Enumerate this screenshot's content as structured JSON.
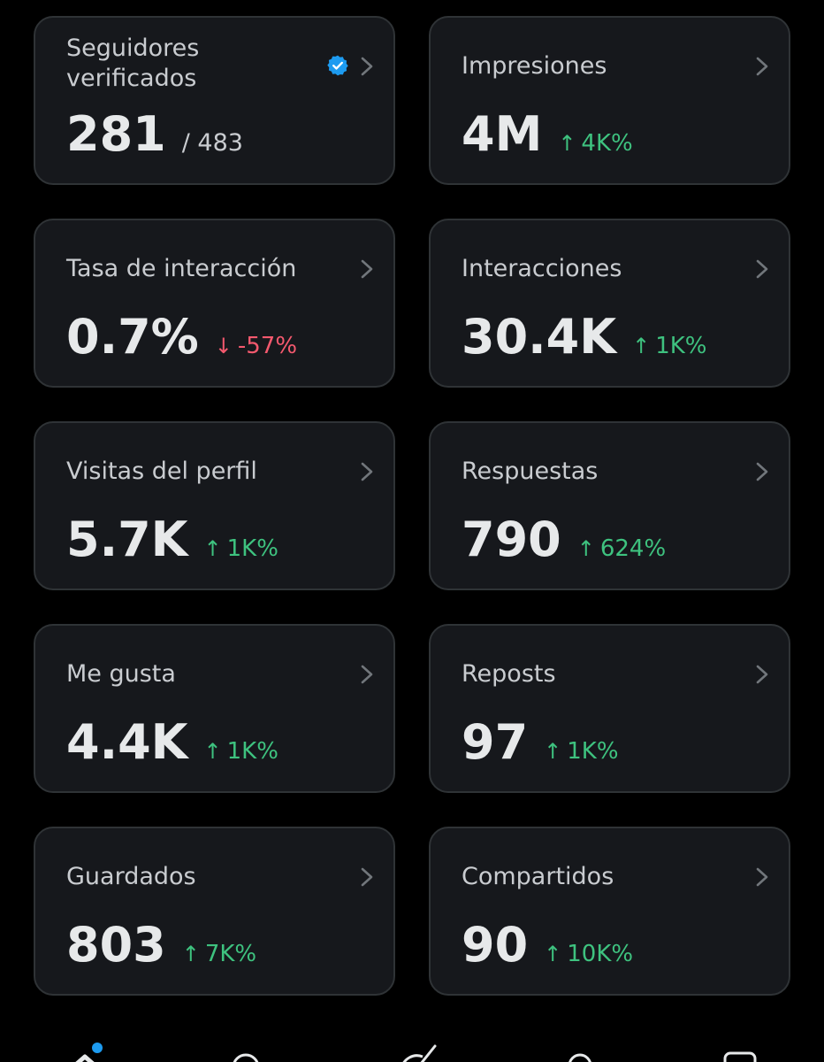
{
  "colors": {
    "background": "#000000",
    "card": "#16181c",
    "card_border": "#2f3336",
    "up": "#3ec27f",
    "down": "#f4596e",
    "verified": "#1d9bf0"
  },
  "cards": [
    {
      "title": "Seguidores verificados",
      "value": "281",
      "total": "/ 483",
      "icon": "verified-badge-icon"
    },
    {
      "title": "Impresiones",
      "value": "4M",
      "change": "4K%",
      "direction": "up"
    },
    {
      "title": "Tasa de interacción",
      "value": "0.7%",
      "change": "-57%",
      "direction": "down"
    },
    {
      "title": "Interacciones",
      "value": "30.4K",
      "change": "1K%",
      "direction": "up"
    },
    {
      "title": "Visitas del perfil",
      "value": "5.7K",
      "change": "1K%",
      "direction": "up"
    },
    {
      "title": "Respuestas",
      "value": "790",
      "change": "624%",
      "direction": "up"
    },
    {
      "title": "Me gusta",
      "value": "4.4K",
      "change": "1K%",
      "direction": "up"
    },
    {
      "title": "Reposts",
      "value": "97",
      "change": "1K%",
      "direction": "up"
    },
    {
      "title": "Guardados",
      "value": "803",
      "change": "7K%",
      "direction": "up"
    },
    {
      "title": "Compartidos",
      "value": "90",
      "change": "10K%",
      "direction": "up"
    }
  ],
  "arrows": {
    "up": "↑",
    "down": "↓"
  },
  "bottom_nav": {
    "items": [
      {
        "icon": "home-icon",
        "notification_dot": true
      },
      {
        "icon": "search-icon"
      },
      {
        "icon": "grok-icon"
      },
      {
        "icon": "communities-icon"
      },
      {
        "icon": "messages-icon"
      }
    ]
  }
}
